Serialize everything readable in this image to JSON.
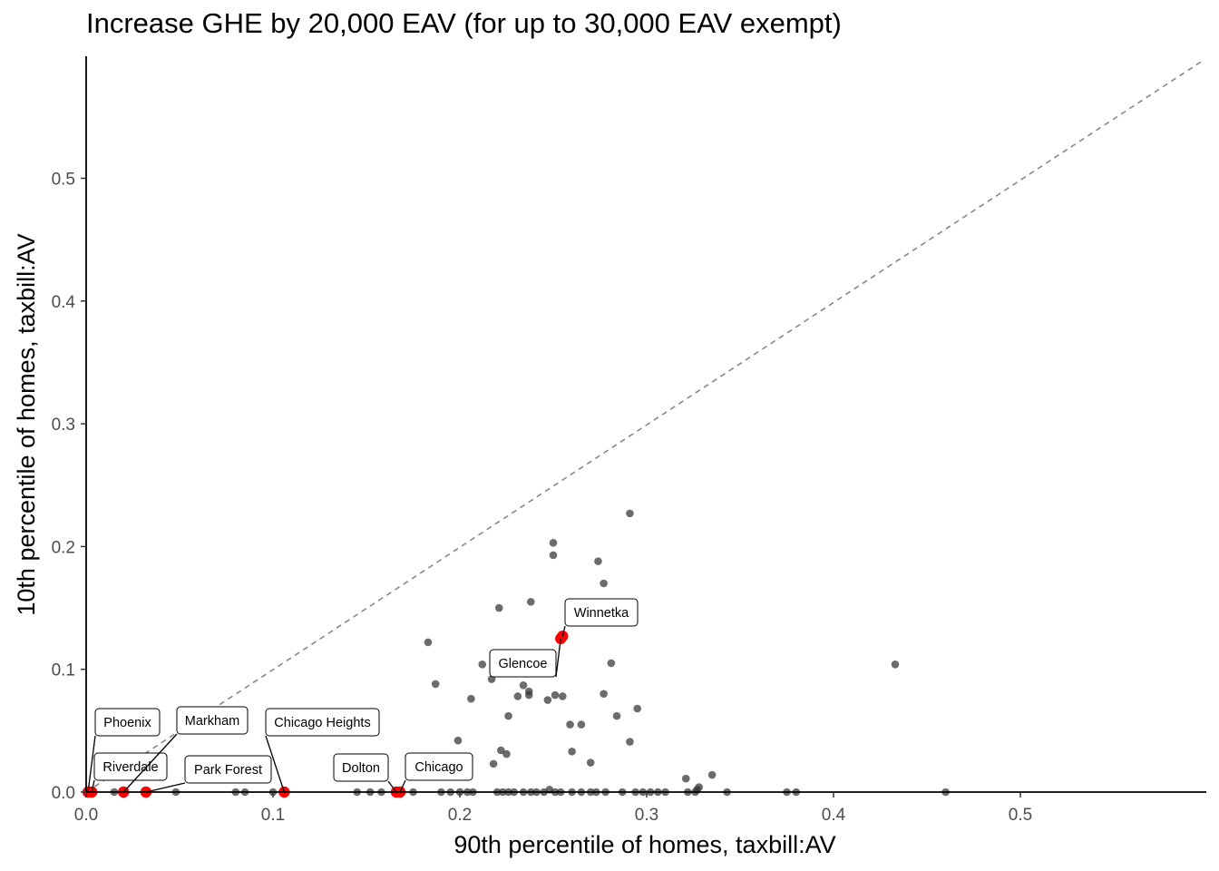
{
  "chart_data": {
    "type": "scatter",
    "title": "Increase GHE by 20,000 EAV (for up to 30,000 EAV exempt)",
    "xlabel": "90th percentile of homes, taxbill:AV",
    "ylabel": "10th percentile of homes, taxbill:AV",
    "xlim": [
      0,
      0.6
    ],
    "ylim": [
      0,
      0.6
    ],
    "x_ticks": [
      0.0,
      0.1,
      0.2,
      0.3,
      0.4,
      0.5
    ],
    "x_tick_labels": [
      "0.0",
      "0.1",
      "0.2",
      "0.3",
      "0.4",
      "0.5"
    ],
    "y_ticks": [
      0.0,
      0.1,
      0.2,
      0.3,
      0.4,
      0.5
    ],
    "y_tick_labels": [
      "0.0",
      "0.1",
      "0.2",
      "0.3",
      "0.4",
      "0.5"
    ],
    "grid": false,
    "reference_line": {
      "type": "y = x",
      "style": "dashed",
      "color": "#888888"
    },
    "colors": {
      "points": "#333333",
      "highlight": "#ff0000",
      "axis": "#000000"
    },
    "points": [
      {
        "x": 0.291,
        "y": 0.227
      },
      {
        "x": 0.25,
        "y": 0.203
      },
      {
        "x": 0.25,
        "y": 0.193
      },
      {
        "x": 0.274,
        "y": 0.188
      },
      {
        "x": 0.277,
        "y": 0.17
      },
      {
        "x": 0.238,
        "y": 0.155
      },
      {
        "x": 0.221,
        "y": 0.15
      },
      {
        "x": 0.183,
        "y": 0.122
      },
      {
        "x": 0.281,
        "y": 0.105
      },
      {
        "x": 0.212,
        "y": 0.104
      },
      {
        "x": 0.433,
        "y": 0.104
      },
      {
        "x": 0.217,
        "y": 0.092
      },
      {
        "x": 0.187,
        "y": 0.088
      },
      {
        "x": 0.234,
        "y": 0.087
      },
      {
        "x": 0.277,
        "y": 0.08
      },
      {
        "x": 0.237,
        "y": 0.082
      },
      {
        "x": 0.237,
        "y": 0.079
      },
      {
        "x": 0.231,
        "y": 0.078
      },
      {
        "x": 0.251,
        "y": 0.079
      },
      {
        "x": 0.255,
        "y": 0.078
      },
      {
        "x": 0.247,
        "y": 0.075
      },
      {
        "x": 0.206,
        "y": 0.076
      },
      {
        "x": 0.295,
        "y": 0.068
      },
      {
        "x": 0.284,
        "y": 0.062
      },
      {
        "x": 0.226,
        "y": 0.062
      },
      {
        "x": 0.259,
        "y": 0.055
      },
      {
        "x": 0.265,
        "y": 0.055
      },
      {
        "x": 0.199,
        "y": 0.042
      },
      {
        "x": 0.291,
        "y": 0.041
      },
      {
        "x": 0.222,
        "y": 0.034
      },
      {
        "x": 0.225,
        "y": 0.031
      },
      {
        "x": 0.26,
        "y": 0.033
      },
      {
        "x": 0.27,
        "y": 0.024
      },
      {
        "x": 0.218,
        "y": 0.023
      },
      {
        "x": 0.335,
        "y": 0.014
      },
      {
        "x": 0.321,
        "y": 0.011
      },
      {
        "x": 0.328,
        "y": 0.004
      },
      {
        "x": 0.327,
        "y": 0.002
      },
      {
        "x": 0.015,
        "y": 0.0
      },
      {
        "x": 0.048,
        "y": 0.0
      },
      {
        "x": 0.08,
        "y": 0.0
      },
      {
        "x": 0.085,
        "y": 0.0
      },
      {
        "x": 0.1,
        "y": 0.0
      },
      {
        "x": 0.145,
        "y": 0.0
      },
      {
        "x": 0.152,
        "y": 0.0
      },
      {
        "x": 0.158,
        "y": 0.0
      },
      {
        "x": 0.175,
        "y": 0.0
      },
      {
        "x": 0.19,
        "y": 0.0
      },
      {
        "x": 0.195,
        "y": 0.0
      },
      {
        "x": 0.2,
        "y": 0.0
      },
      {
        "x": 0.204,
        "y": 0.0
      },
      {
        "x": 0.207,
        "y": 0.0
      },
      {
        "x": 0.22,
        "y": 0.0
      },
      {
        "x": 0.223,
        "y": 0.0
      },
      {
        "x": 0.226,
        "y": 0.0
      },
      {
        "x": 0.229,
        "y": 0.0
      },
      {
        "x": 0.234,
        "y": 0.0
      },
      {
        "x": 0.238,
        "y": 0.0
      },
      {
        "x": 0.241,
        "y": 0.0
      },
      {
        "x": 0.245,
        "y": 0.0
      },
      {
        "x": 0.248,
        "y": 0.002
      },
      {
        "x": 0.251,
        "y": 0.0
      },
      {
        "x": 0.254,
        "y": 0.0
      },
      {
        "x": 0.26,
        "y": 0.0
      },
      {
        "x": 0.265,
        "y": 0.0
      },
      {
        "x": 0.27,
        "y": 0.0
      },
      {
        "x": 0.273,
        "y": 0.0
      },
      {
        "x": 0.278,
        "y": 0.0
      },
      {
        "x": 0.287,
        "y": 0.0
      },
      {
        "x": 0.294,
        "y": 0.0
      },
      {
        "x": 0.298,
        "y": 0.0
      },
      {
        "x": 0.302,
        "y": 0.0
      },
      {
        "x": 0.306,
        "y": 0.0
      },
      {
        "x": 0.31,
        "y": 0.0
      },
      {
        "x": 0.322,
        "y": 0.0
      },
      {
        "x": 0.326,
        "y": 0.0
      },
      {
        "x": 0.343,
        "y": 0.0
      },
      {
        "x": 0.375,
        "y": 0.0
      },
      {
        "x": 0.38,
        "y": 0.0
      },
      {
        "x": 0.46,
        "y": 0.0
      }
    ],
    "highlighted": [
      {
        "name": "Winnetka",
        "x": 0.255,
        "y": 0.127
      },
      {
        "name": "Glencoe",
        "x": 0.254,
        "y": 0.125
      },
      {
        "name": "Phoenix",
        "x": 0.001,
        "y": 0.0
      },
      {
        "name": "Riverdale",
        "x": 0.003,
        "y": 0.0
      },
      {
        "name": "Markham",
        "x": 0.02,
        "y": 0.0
      },
      {
        "name": "Park Forest",
        "x": 0.032,
        "y": 0.0
      },
      {
        "name": "Chicago Heights",
        "x": 0.106,
        "y": 0.0
      },
      {
        "name": "Dolton",
        "x": 0.166,
        "y": 0.0
      },
      {
        "name": "Chicago",
        "x": 0.168,
        "y": 0.0
      }
    ]
  }
}
